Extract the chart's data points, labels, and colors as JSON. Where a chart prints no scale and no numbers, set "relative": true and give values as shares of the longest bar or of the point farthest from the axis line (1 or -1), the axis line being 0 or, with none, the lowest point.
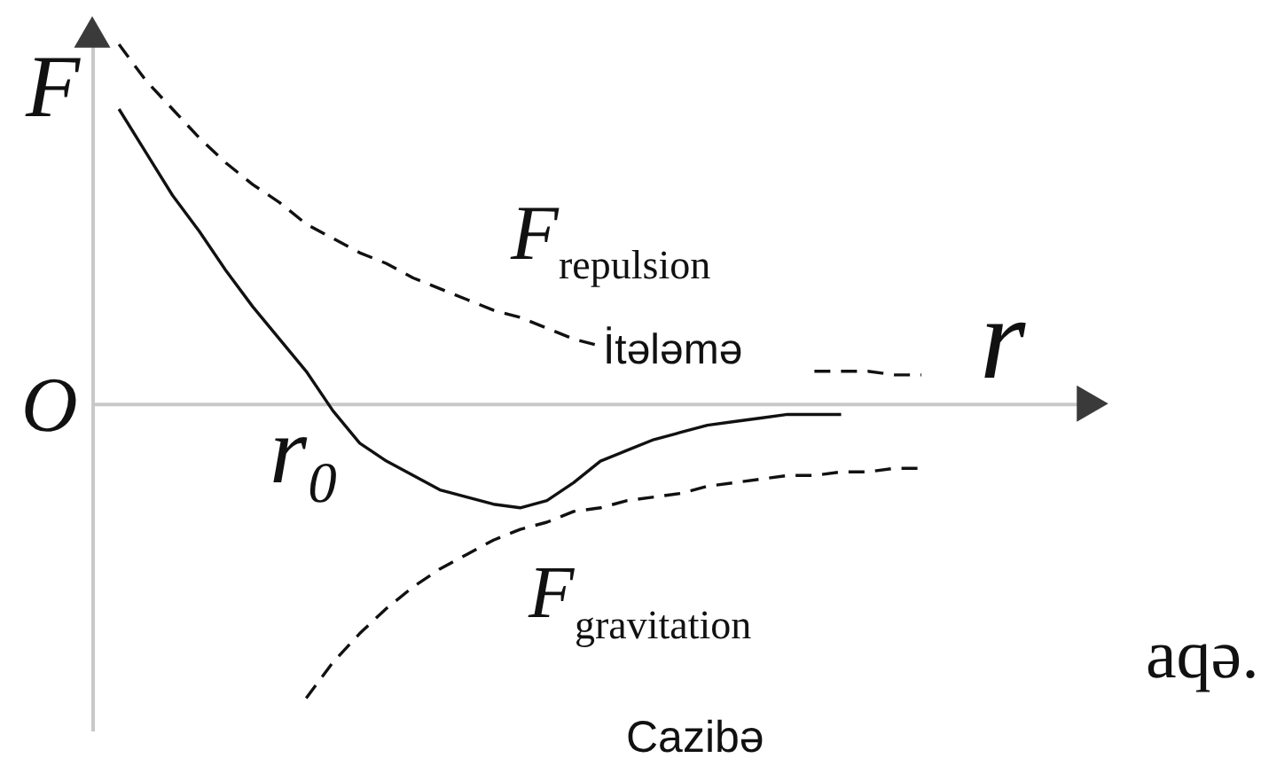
{
  "chart_data": {
    "type": "line",
    "relative": true,
    "xlabel": "r",
    "ylabel": "F",
    "categories": [
      null,
      null,
      null,
      null,
      null,
      null,
      null,
      null,
      null,
      null,
      null,
      null,
      null,
      null,
      null,
      null,
      null,
      null,
      null,
      null,
      null,
      null,
      null,
      null,
      null,
      null,
      null,
      null,
      null,
      null,
      null,
      null,
      null,
      null,
      null,
      null
    ],
    "series": [
      {
        "name": "F$_{repulsion}$",
        "color": "#111111",
        "line_style": "dashed",
        "values": [
          1.0,
          0.9,
          0.82,
          0.74,
          0.67,
          0.61,
          0.56,
          0.5,
          0.46,
          0.42,
          0.39,
          0.35,
          0.32,
          0.29,
          0.26,
          0.24,
          0.21,
          0.18,
          0.16,
          null,
          null,
          null,
          null,
          null,
          null,
          null,
          0.09,
          0.09,
          0.09,
          0.08,
          0.08,
          null,
          null,
          null,
          null,
          null
        ]
      },
      {
        "color": "#111111",
        "line_style": "solid",
        "values": [
          0.82,
          0.7,
          0.58,
          0.48,
          0.37,
          0.27,
          0.18,
          0.09,
          -0.02,
          -0.11,
          -0.16,
          -0.2,
          -0.24,
          -0.26,
          -0.28,
          -0.29,
          -0.27,
          -0.22,
          -0.16,
          -0.13,
          -0.1,
          -0.08,
          -0.06,
          -0.05,
          -0.04,
          -0.03,
          -0.03,
          -0.03,
          null,
          null,
          null,
          null,
          null,
          null,
          null,
          null
        ]
      },
      {
        "name": "F$_{gravitation}$",
        "color": "#111111",
        "line_style": "dashed",
        "values": [
          null,
          null,
          null,
          null,
          null,
          null,
          null,
          -0.82,
          -0.72,
          -0.64,
          -0.57,
          -0.51,
          -0.46,
          -0.42,
          -0.38,
          -0.35,
          -0.33,
          -0.3,
          -0.29,
          -0.27,
          -0.26,
          -0.25,
          -0.23,
          -0.22,
          -0.21,
          -0.2,
          -0.2,
          -0.19,
          -0.19,
          -0.18,
          -0.18,
          null,
          null,
          null,
          null,
          null
        ]
      }
    ],
    "annotations": [
      "O",
      "r₀",
      "İtələmə",
      "Cazibə",
      "aqə."
    ]
  }
}
